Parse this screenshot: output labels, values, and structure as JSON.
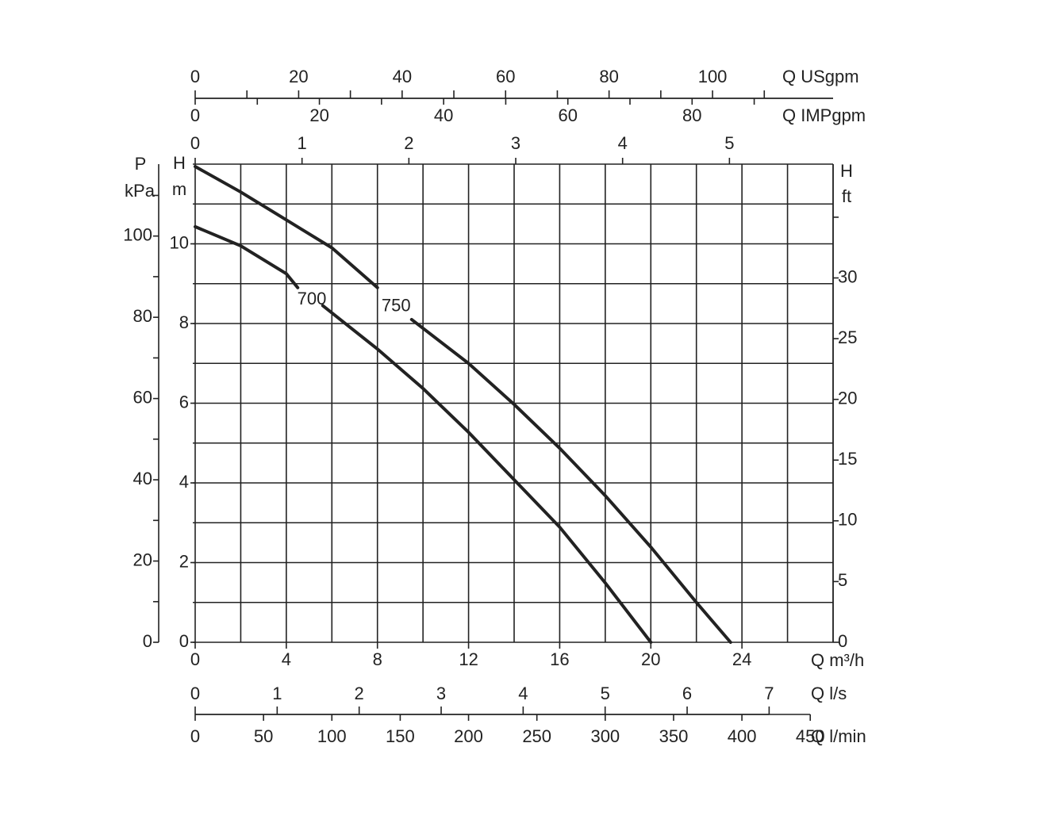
{
  "chart_data": {
    "type": "line",
    "x_label": "Q m³/h",
    "y_label": "H",
    "y_unit": "m",
    "xlim": [
      0,
      28
    ],
    "ylim": [
      0,
      12
    ],
    "xticks": [
      0,
      4,
      8,
      12,
      16,
      20,
      24
    ],
    "yticks": [
      0,
      2,
      4,
      6,
      8,
      10
    ],
    "xgrid": [
      0,
      2,
      4,
      6,
      8,
      10,
      12,
      14,
      16,
      18,
      20,
      22,
      24,
      26,
      28
    ],
    "ygrid": [
      0,
      1,
      2,
      3,
      4,
      5,
      6,
      7,
      8,
      9,
      10,
      11,
      12
    ],
    "series": [
      {
        "name": "700",
        "color": "#222222",
        "x": [
          0,
          2,
          4,
          4.5,
          null,
          5.6,
          8,
          10,
          12,
          14,
          16,
          18,
          20
        ],
        "values": [
          10.43,
          9.95,
          9.25,
          8.9,
          null,
          8.45,
          7.36,
          6.37,
          5.27,
          4.08,
          2.89,
          1.49,
          0
        ]
      },
      {
        "name": "750",
        "color": "#222222",
        "x": [
          0,
          2,
          4,
          6,
          8,
          null,
          9.5,
          12,
          14,
          16,
          18,
          20,
          22,
          23.5
        ],
        "values": [
          11.94,
          11.3,
          10.6,
          9.9,
          8.9,
          null,
          8.1,
          7.0,
          5.97,
          4.87,
          3.68,
          2.39,
          1.0,
          0
        ]
      }
    ],
    "secondary_axes": [
      {
        "label": "Q USgpm",
        "lim": [
          0,
          123.3
        ],
        "ticks": [
          0,
          20,
          40,
          60,
          80,
          100
        ],
        "minor_ticks": [
          10,
          30,
          50,
          70,
          90,
          110
        ]
      },
      {
        "label": "Q IMPgpm",
        "lim": [
          0,
          102.7
        ],
        "ticks": [
          0,
          20,
          40,
          60,
          80
        ],
        "minor_ticks": [
          10,
          30,
          50,
          70,
          90
        ]
      },
      {
        "lim": [
          0,
          5.97
        ],
        "ticks": [
          0,
          1,
          2,
          3,
          4,
          5
        ]
      },
      {
        "label": "Q l/s",
        "lim": [
          0,
          7.78
        ],
        "ticks": [
          0,
          1,
          2,
          3,
          4,
          5,
          6,
          7
        ]
      },
      {
        "label": "Q l/min",
        "lim": [
          0,
          466.7
        ],
        "ticks": [
          0,
          50,
          100,
          150,
          200,
          250,
          300,
          350,
          400,
          450
        ]
      },
      {
        "label": "P",
        "unit": "kPa",
        "lim": [
          0,
          117.7
        ],
        "ticks": [
          0,
          20,
          40,
          60,
          80,
          100
        ],
        "minor_ticks": [
          10,
          30,
          50,
          70,
          90,
          110
        ]
      },
      {
        "label": "H",
        "unit": "ft",
        "lim": [
          0,
          39.37
        ],
        "ticks": [
          0,
          5,
          10,
          15,
          20,
          25,
          30
        ],
        "minor_ticks": [
          35
        ]
      }
    ]
  }
}
